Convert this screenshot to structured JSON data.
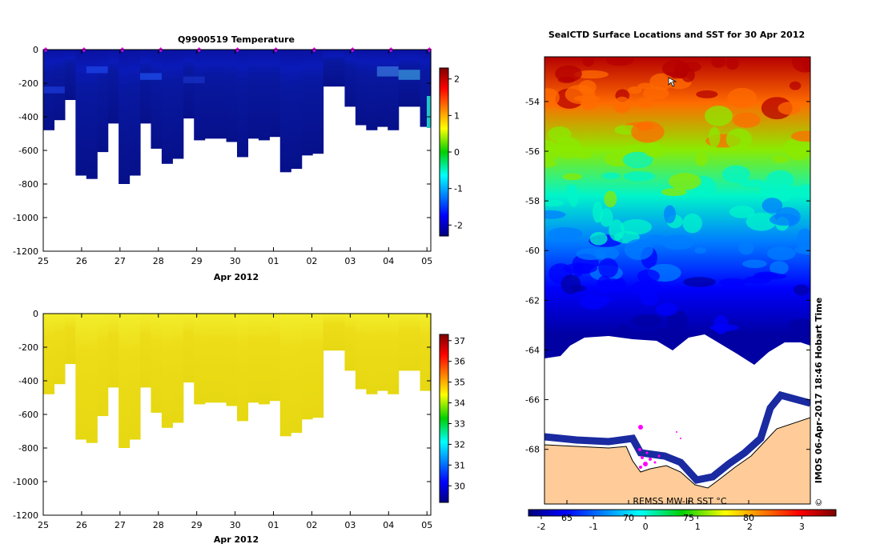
{
  "figure": {
    "stamp": "IMOS 06-Apr-2017 18:46 Hobart Time",
    "copyright": "©"
  },
  "chart_data": [
    {
      "type": "heatmap",
      "title": "Q9900519  Temperature",
      "xlabel": "Apr 2012",
      "ylabel": "",
      "x_ticks": [
        "25",
        "26",
        "27",
        "28",
        "29",
        "30",
        "01",
        "02",
        "03",
        "04",
        "05"
      ],
      "xlim_days": [
        0,
        10.1
      ],
      "ylim": [
        -1200,
        0
      ],
      "y_ticks": [
        0,
        -200,
        -400,
        -600,
        -800,
        -1000,
        -1200
      ],
      "profile_bottom_depths": [
        480,
        420,
        300,
        750,
        770,
        610,
        440,
        800,
        750,
        440,
        590,
        680,
        650,
        410,
        540,
        530,
        530,
        550,
        640,
        530,
        540,
        520,
        730,
        710,
        630,
        620,
        220,
        220,
        340,
        450,
        480,
        460,
        480,
        340,
        340,
        460
      ],
      "cast_markers_days": [
        0,
        1,
        2,
        3,
        4,
        5,
        6,
        7,
        8,
        9,
        10
      ],
      "colorbar": {
        "min": -2.3,
        "max": 2.3,
        "ticks": [
          2,
          1,
          0,
          -1,
          -2
        ],
        "colormap": "jet"
      },
      "value_range_shown": [
        -2.1,
        -0.6
      ]
    },
    {
      "type": "heatmap",
      "title": "",
      "xlabel": "Apr 2012",
      "ylabel": "",
      "x_ticks": [
        "25",
        "26",
        "27",
        "28",
        "29",
        "30",
        "01",
        "02",
        "03",
        "04",
        "05"
      ],
      "xlim_days": [
        0,
        10.1
      ],
      "ylim": [
        -1200,
        0
      ],
      "y_ticks": [
        0,
        -200,
        -400,
        -600,
        -800,
        -1000,
        -1200
      ],
      "profile_bottom_depths": [
        480,
        420,
        300,
        750,
        770,
        610,
        440,
        800,
        750,
        440,
        590,
        680,
        650,
        410,
        540,
        530,
        530,
        550,
        640,
        530,
        540,
        520,
        730,
        710,
        630,
        620,
        220,
        220,
        340,
        450,
        480,
        460,
        480,
        340,
        340,
        460
      ],
      "colorbar": {
        "min": 29.2,
        "max": 37.3,
        "ticks": [
          37,
          36,
          35,
          34,
          33,
          32,
          31,
          30
        ],
        "colormap": "jet"
      },
      "value_range_shown": [
        34.2,
        34.8
      ]
    },
    {
      "type": "heatmap",
      "title": "SealCTD Surface Locations and SST for 30 Apr 2012",
      "ylabel": "",
      "lat_range": [
        -70,
        -52
      ],
      "y_ticks": [
        -54,
        -56,
        -58,
        -60,
        -62,
        -64,
        -66,
        -68
      ],
      "lon_ticks": [
        "65",
        "70",
        "75",
        "80"
      ],
      "colorbar": {
        "label": "REMSS MW-IR SST °C",
        "min": -2,
        "max": 3.9,
        "ticks": [
          "-2",
          "-1",
          "0",
          "1",
          "2",
          "3"
        ],
        "colormap": "jet"
      },
      "sst_gradient_stops_c": [
        3.6,
        2.6,
        1.4,
        0.3,
        -0.6,
        -1.3,
        -1.8
      ],
      "land_color": "#ffcc99",
      "marker_color": "#ff00ff"
    }
  ]
}
